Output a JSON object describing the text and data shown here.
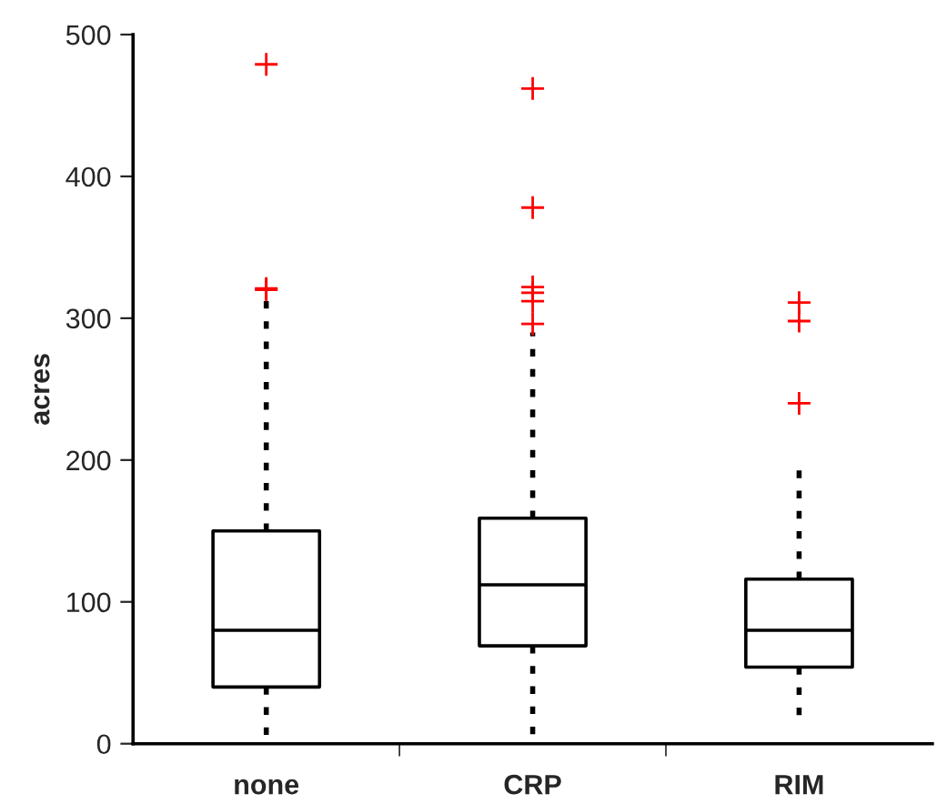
{
  "chart_data": {
    "type": "box",
    "ylabel": "acres",
    "categories": [
      "none",
      "CRP",
      "RIM"
    ],
    "boxes": [
      {
        "low": 5,
        "q1": 40,
        "median": 80,
        "q3": 150,
        "high": 318,
        "outliers": [
          320,
          321,
          479
        ]
      },
      {
        "low": 2,
        "q1": 69,
        "median": 112,
        "q3": 159,
        "high": 290,
        "outliers": [
          296,
          312,
          318,
          322,
          378,
          462
        ]
      },
      {
        "low": 12,
        "q1": 54,
        "median": 80,
        "q3": 116,
        "high": 198,
        "outliers": [
          240,
          298,
          311
        ]
      }
    ],
    "color": "#000000",
    "ylim": [
      0,
      500
    ],
    "yticks": [
      0,
      100,
      200,
      300,
      400,
      500
    ],
    "grid": false
  }
}
